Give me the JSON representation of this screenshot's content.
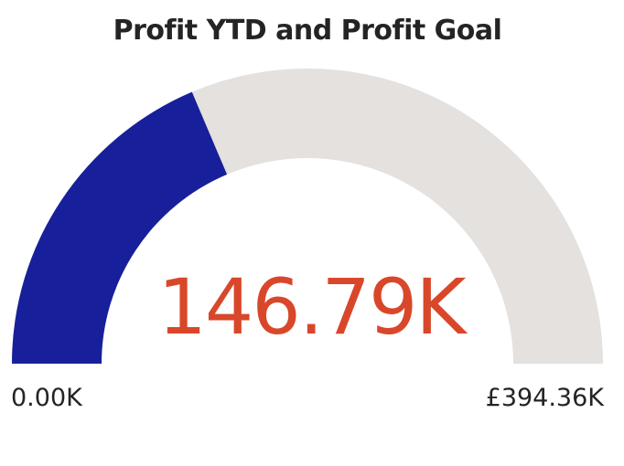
{
  "chart_data": {
    "type": "gauge",
    "title": "Profit YTD and Profit Goal",
    "value": 146.79,
    "value_label": "146.79K",
    "min": 0,
    "max": 394.36,
    "min_label": "0.00K",
    "max_label": "£394.36K",
    "unit": "K",
    "colors": {
      "filled": "#17209a",
      "track": "#e4e1de",
      "value_text": "#d9472b",
      "text": "#252423"
    }
  }
}
